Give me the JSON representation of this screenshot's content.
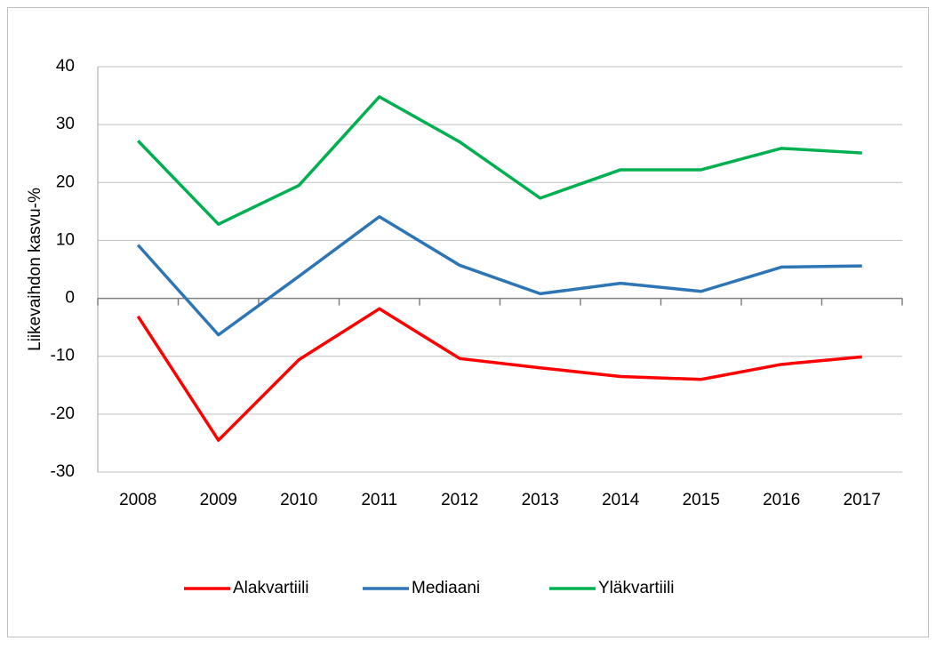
{
  "chart_data": {
    "type": "line",
    "y_label": "Liikevaihdon kasvu-%",
    "categories": [
      "2008",
      "2009",
      "2010",
      "2011",
      "2012",
      "2013",
      "2014",
      "2015",
      "2016",
      "2017"
    ],
    "series": [
      {
        "name": "Alakvartiili",
        "color": "#ff0000",
        "values": [
          -3.1,
          -24.5,
          -10.6,
          -1.8,
          -10.4,
          -12,
          -13.5,
          -14,
          -11.4,
          -10.1
        ]
      },
      {
        "name": "Mediaani",
        "color": "#2e75b6",
        "values": [
          9.2,
          -6.3,
          3.8,
          14.1,
          5.7,
          0.8,
          2.6,
          1.2,
          5.4,
          5.6
        ]
      },
      {
        "name": "Yläkvartiili",
        "color": "#00b050",
        "values": [
          27.2,
          12.8,
          19.5,
          34.8,
          27,
          17.3,
          22.2,
          22.2,
          25.9,
          25.1
        ]
      }
    ],
    "ylim": [
      -30,
      40
    ],
    "yticks": [
      -30,
      -20,
      -10,
      0,
      10,
      20,
      30,
      40
    ],
    "grid": true,
    "legend": "bottom"
  }
}
